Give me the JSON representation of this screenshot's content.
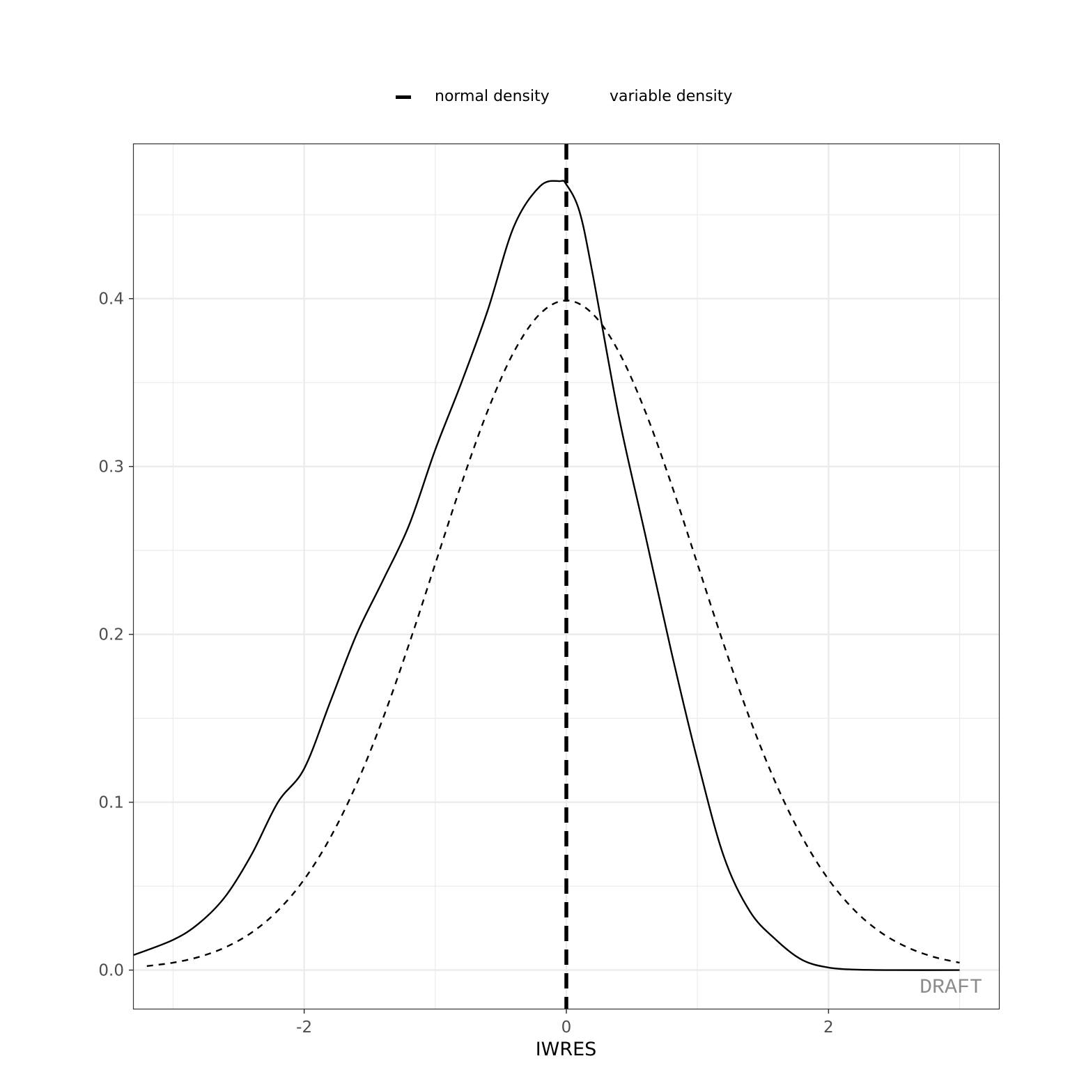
{
  "legend": {
    "items": [
      {
        "label": "normal density",
        "line_style": "dashed"
      },
      {
        "label": "variable density",
        "line_style": "solid"
      }
    ]
  },
  "watermark": "DRAFT",
  "chart_data": {
    "type": "line",
    "xlabel": "IWRES",
    "ylabel": "",
    "xlim": [
      -3.3,
      3.3
    ],
    "ylim": [
      -0.023,
      0.492
    ],
    "x_ticks": [
      -2,
      0,
      2
    ],
    "x_tick_labels": [
      "-2",
      "0",
      "2"
    ],
    "y_ticks": [
      0.0,
      0.1,
      0.2,
      0.3,
      0.4
    ],
    "y_tick_labels": [
      "0.0",
      "0.1",
      "0.2",
      "0.3",
      "0.4"
    ],
    "grid": true,
    "legend_position": "top",
    "reference_lines": [
      {
        "orientation": "vertical",
        "x": 0,
        "style": "dashed"
      }
    ],
    "series": [
      {
        "name": "variable density",
        "style": "solid",
        "x": [
          -3.3,
          -3.0,
          -2.8,
          -2.6,
          -2.4,
          -2.2,
          -2.0,
          -1.8,
          -1.6,
          -1.4,
          -1.2,
          -1.0,
          -0.8,
          -0.6,
          -0.4,
          -0.2,
          -0.05,
          0.0,
          0.1,
          0.2,
          0.4,
          0.6,
          0.8,
          1.0,
          1.2,
          1.4,
          1.6,
          1.8,
          2.0,
          2.2,
          2.5,
          3.0
        ],
        "y": [
          0.009,
          0.018,
          0.028,
          0.044,
          0.069,
          0.1,
          0.12,
          0.16,
          0.2,
          0.232,
          0.265,
          0.31,
          0.35,
          0.393,
          0.443,
          0.467,
          0.47,
          0.468,
          0.452,
          0.415,
          0.33,
          0.26,
          0.19,
          0.125,
          0.068,
          0.035,
          0.018,
          0.006,
          0.0015,
          0.0003,
          0.0,
          0.0
        ]
      },
      {
        "name": "normal density",
        "style": "dashed",
        "x": [
          -3.2,
          -3.0,
          -2.8,
          -2.6,
          -2.4,
          -2.2,
          -2.0,
          -1.8,
          -1.6,
          -1.4,
          -1.2,
          -1.0,
          -0.8,
          -0.6,
          -0.4,
          -0.2,
          0.0,
          0.2,
          0.4,
          0.6,
          0.8,
          1.0,
          1.2,
          1.4,
          1.6,
          1.8,
          2.0,
          2.2,
          2.4,
          2.6,
          2.8,
          3.0
        ],
        "y": [
          0.0024,
          0.0044,
          0.0079,
          0.0136,
          0.0224,
          0.0355,
          0.054,
          0.079,
          0.1109,
          0.1497,
          0.1942,
          0.242,
          0.2897,
          0.3332,
          0.3683,
          0.391,
          0.3989,
          0.391,
          0.3683,
          0.3332,
          0.2897,
          0.242,
          0.1942,
          0.1497,
          0.1109,
          0.079,
          0.054,
          0.0355,
          0.0224,
          0.0136,
          0.0079,
          0.0044
        ]
      }
    ]
  }
}
